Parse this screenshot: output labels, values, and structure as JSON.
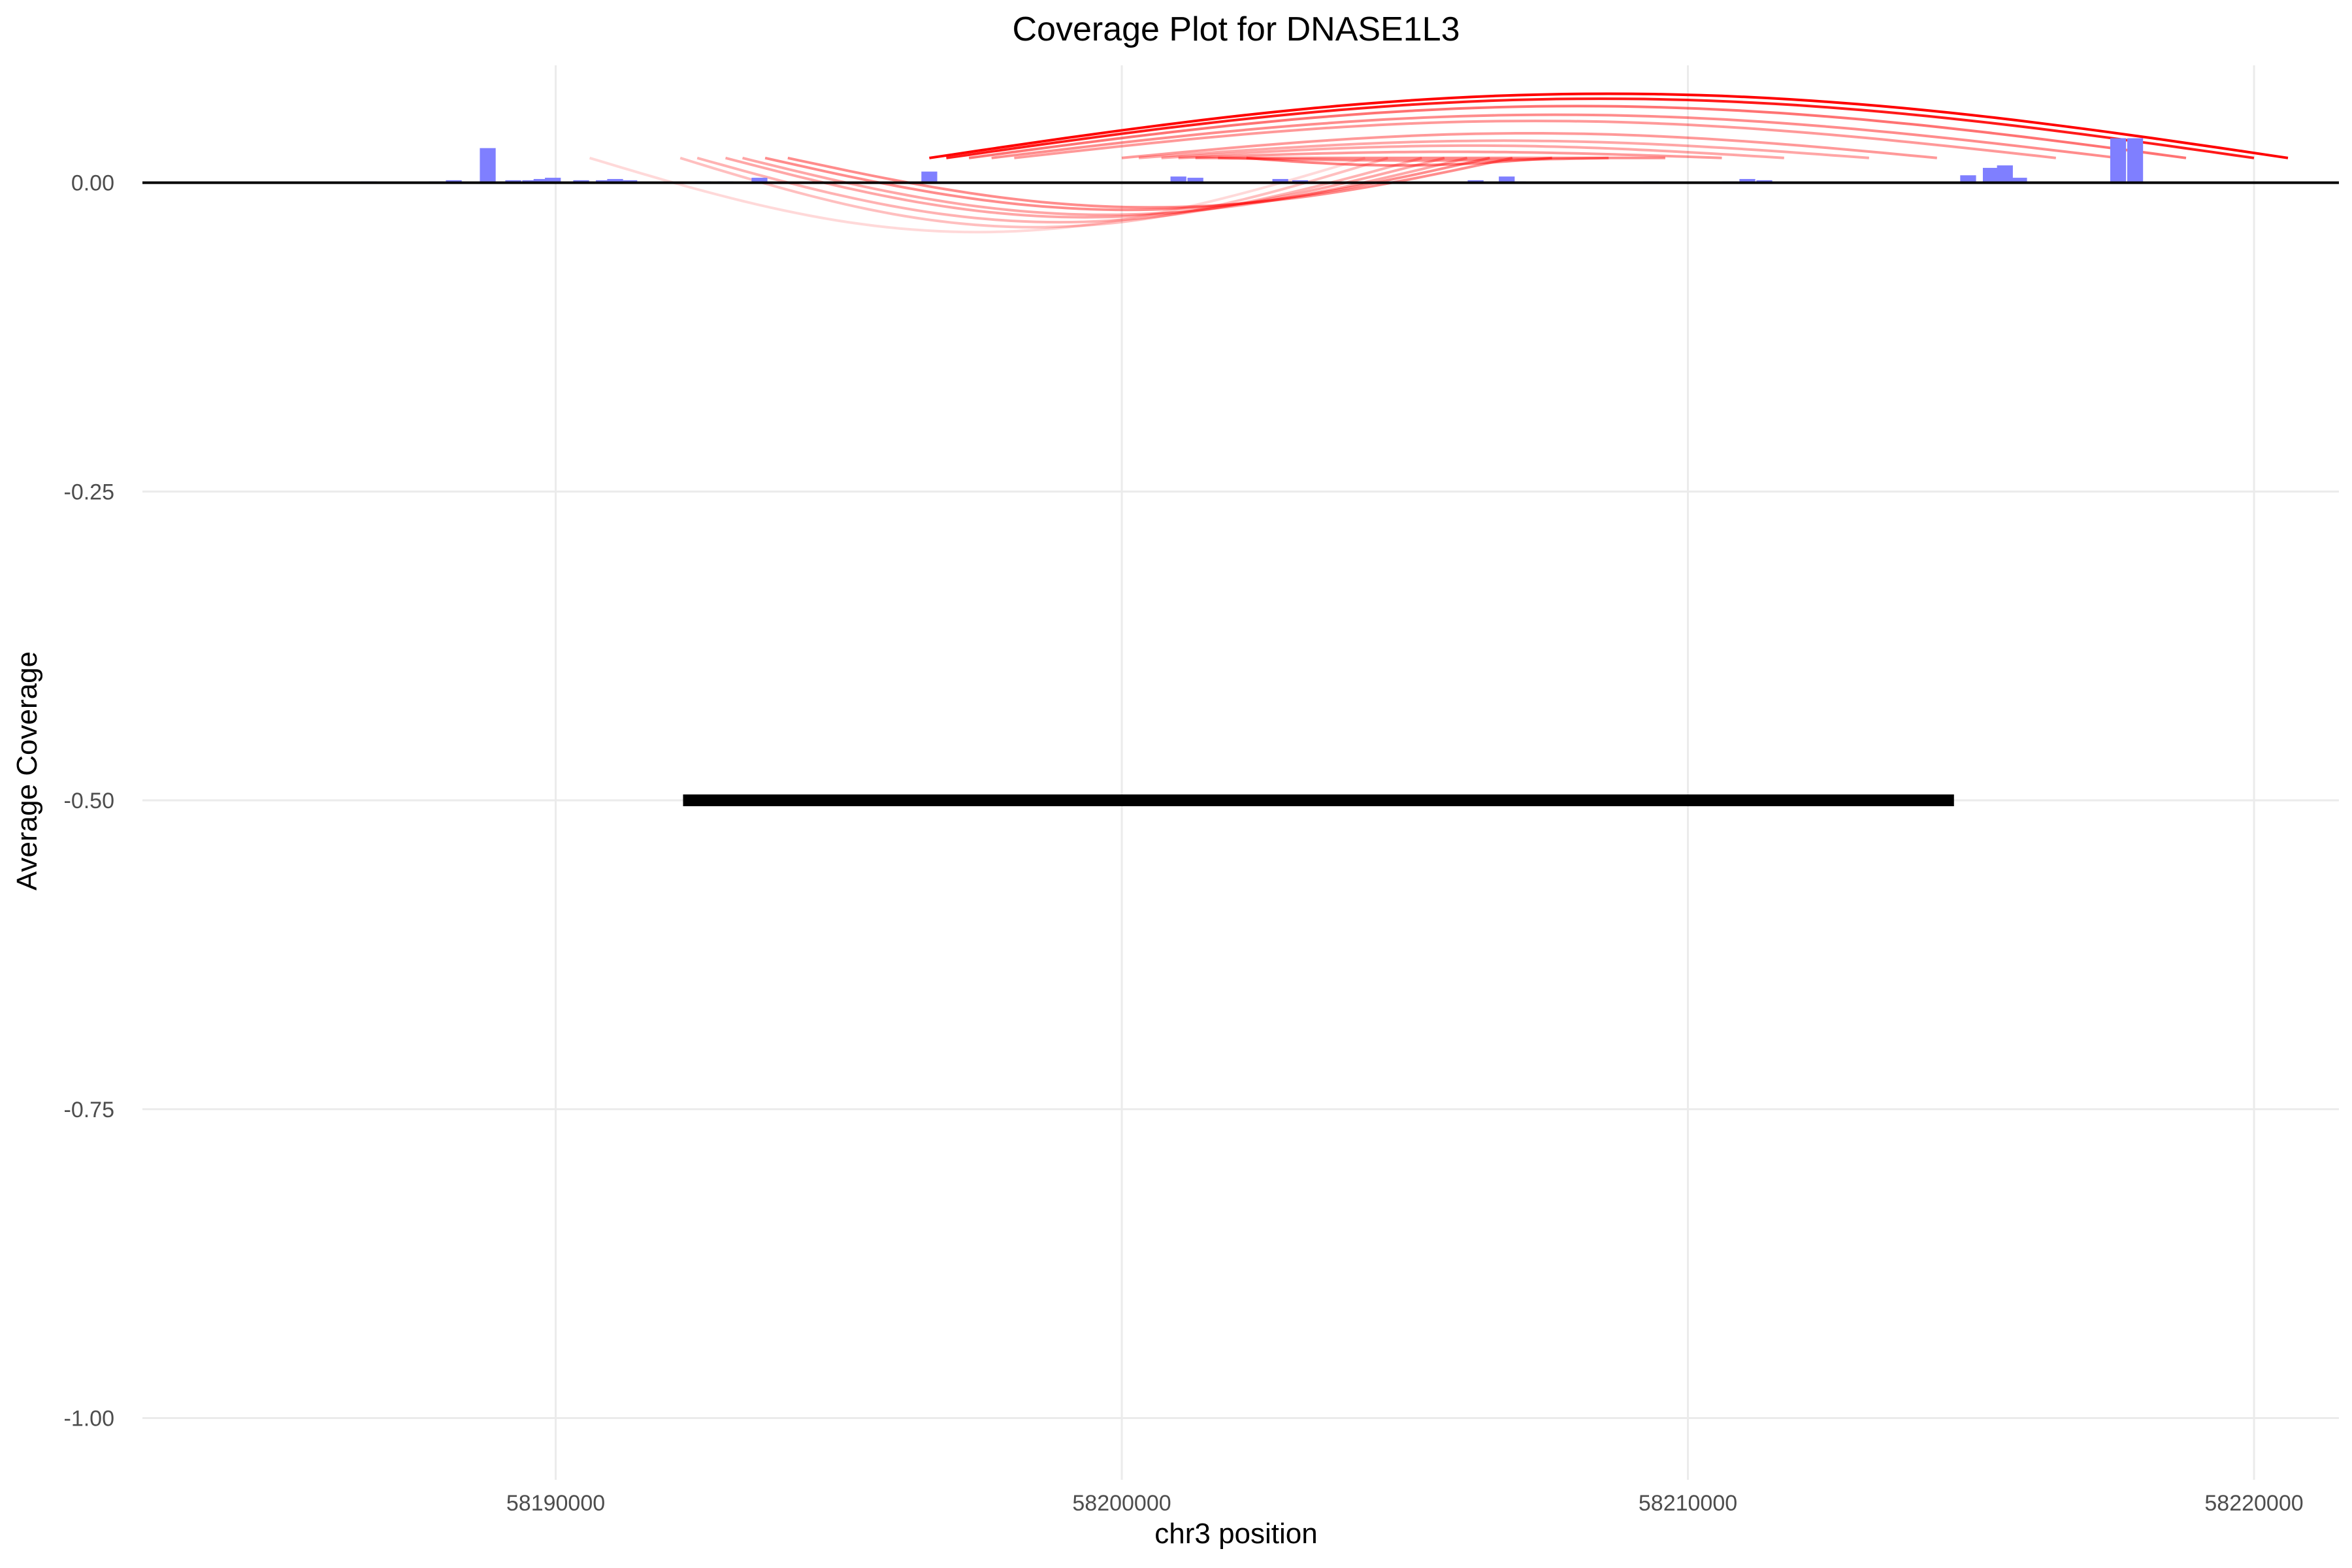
{
  "chart_data": {
    "type": "bar",
    "title": "Coverage Plot for DNASE1L3",
    "xlabel": "chr3 position",
    "ylabel": "Average Coverage",
    "xlim": [
      58182700,
      58221500
    ],
    "ylim": [
      -1.05,
      0.095
    ],
    "x_ticks": [
      58190000,
      58200000,
      58210000,
      58220000
    ],
    "x_tick_labels": [
      "58190000",
      "58200000",
      "58210000",
      "58220000"
    ],
    "y_ticks": [
      -1.0,
      -0.75,
      -0.5,
      -0.25,
      0.0
    ],
    "y_tick_labels": [
      "-1.00",
      "-0.75",
      "-0.50",
      "-0.25",
      "0.00"
    ],
    "grid": true,
    "colors": {
      "bars": "#7f7fff",
      "arcs": "#ff0000",
      "baseline": "#000000",
      "gene": "#000000",
      "grid": "#ebebeb"
    },
    "coverage_bars": [
      {
        "x": 58186700,
        "y": 0.001
      },
      {
        "x": 58187900,
        "y": 0.001
      },
      {
        "x": 58188200,
        "y": 0.002
      },
      {
        "x": 58188800,
        "y": 0.028
      },
      {
        "x": 58189250,
        "y": 0.002
      },
      {
        "x": 58189550,
        "y": 0.002
      },
      {
        "x": 58189750,
        "y": 0.003
      },
      {
        "x": 58189950,
        "y": 0.004
      },
      {
        "x": 58190450,
        "y": 0.002
      },
      {
        "x": 58190850,
        "y": 0.002
      },
      {
        "x": 58191050,
        "y": 0.003
      },
      {
        "x": 58191300,
        "y": 0.002
      },
      {
        "x": 58192600,
        "y": 0.001
      },
      {
        "x": 58193000,
        "y": 0.001
      },
      {
        "x": 58193600,
        "y": 0.004
      },
      {
        "x": 58196600,
        "y": 0.009
      },
      {
        "x": 58201000,
        "y": 0.005
      },
      {
        "x": 58201300,
        "y": 0.004
      },
      {
        "x": 58202800,
        "y": 0.003
      },
      {
        "x": 58203150,
        "y": 0.002
      },
      {
        "x": 58204800,
        "y": 0.001
      },
      {
        "x": 58206250,
        "y": 0.002
      },
      {
        "x": 58206800,
        "y": 0.005
      },
      {
        "x": 58207000,
        "y": 0.001
      },
      {
        "x": 58209350,
        "y": 0.001
      },
      {
        "x": 58210750,
        "y": 0.001
      },
      {
        "x": 58211050,
        "y": 0.003
      },
      {
        "x": 58211350,
        "y": 0.002
      },
      {
        "x": 58214950,
        "y": 0.006
      },
      {
        "x": 58215350,
        "y": 0.012
      },
      {
        "x": 58215600,
        "y": 0.014
      },
      {
        "x": 58215850,
        "y": 0.004
      },
      {
        "x": 58217600,
        "y": 0.036
      },
      {
        "x": 58217900,
        "y": 0.036
      }
    ],
    "coverage_bar_width": 280,
    "arcs": [
      {
        "start": 58190600,
        "end": 58204300,
        "height": -0.04,
        "alpha": 0.15
      },
      {
        "start": 58192200,
        "end": 58204700,
        "height": -0.036,
        "alpha": 0.25
      },
      {
        "start": 58192500,
        "end": 58205300,
        "height": -0.032,
        "alpha": 0.3
      },
      {
        "start": 58193000,
        "end": 58205700,
        "height": -0.028,
        "alpha": 0.35
      },
      {
        "start": 58193300,
        "end": 58206100,
        "height": -0.026,
        "alpha": 0.35
      },
      {
        "start": 58193700,
        "end": 58206500,
        "height": -0.022,
        "alpha": 0.45
      },
      {
        "start": 58194100,
        "end": 58206900,
        "height": -0.02,
        "alpha": 0.45
      },
      {
        "start": 58196600,
        "end": 58220600,
        "height": 0.072,
        "alpha": 1.0
      },
      {
        "start": 58196900,
        "end": 58220000,
        "height": 0.068,
        "alpha": 0.9
      },
      {
        "start": 58197300,
        "end": 58218800,
        "height": 0.062,
        "alpha": 0.55
      },
      {
        "start": 58197700,
        "end": 58217600,
        "height": 0.055,
        "alpha": 0.45
      },
      {
        "start": 58198100,
        "end": 58216500,
        "height": 0.05,
        "alpha": 0.4
      },
      {
        "start": 58200000,
        "end": 58214400,
        "height": 0.04,
        "alpha": 0.4
      },
      {
        "start": 58200300,
        "end": 58213200,
        "height": 0.034,
        "alpha": 0.35
      },
      {
        "start": 58200700,
        "end": 58211700,
        "height": 0.03,
        "alpha": 0.35
      },
      {
        "start": 58201000,
        "end": 58210600,
        "height": 0.025,
        "alpha": 0.4
      },
      {
        "start": 58201300,
        "end": 58209600,
        "height": 0.02,
        "alpha": 0.45
      },
      {
        "start": 58201700,
        "end": 58208600,
        "height": 0.018,
        "alpha": 0.45
      },
      {
        "start": 58202200,
        "end": 58207600,
        "height": 0.014,
        "alpha": 0.5
      }
    ],
    "gene_segment": {
      "start": 58192250,
      "end": 58214700,
      "y": -0.5
    }
  }
}
